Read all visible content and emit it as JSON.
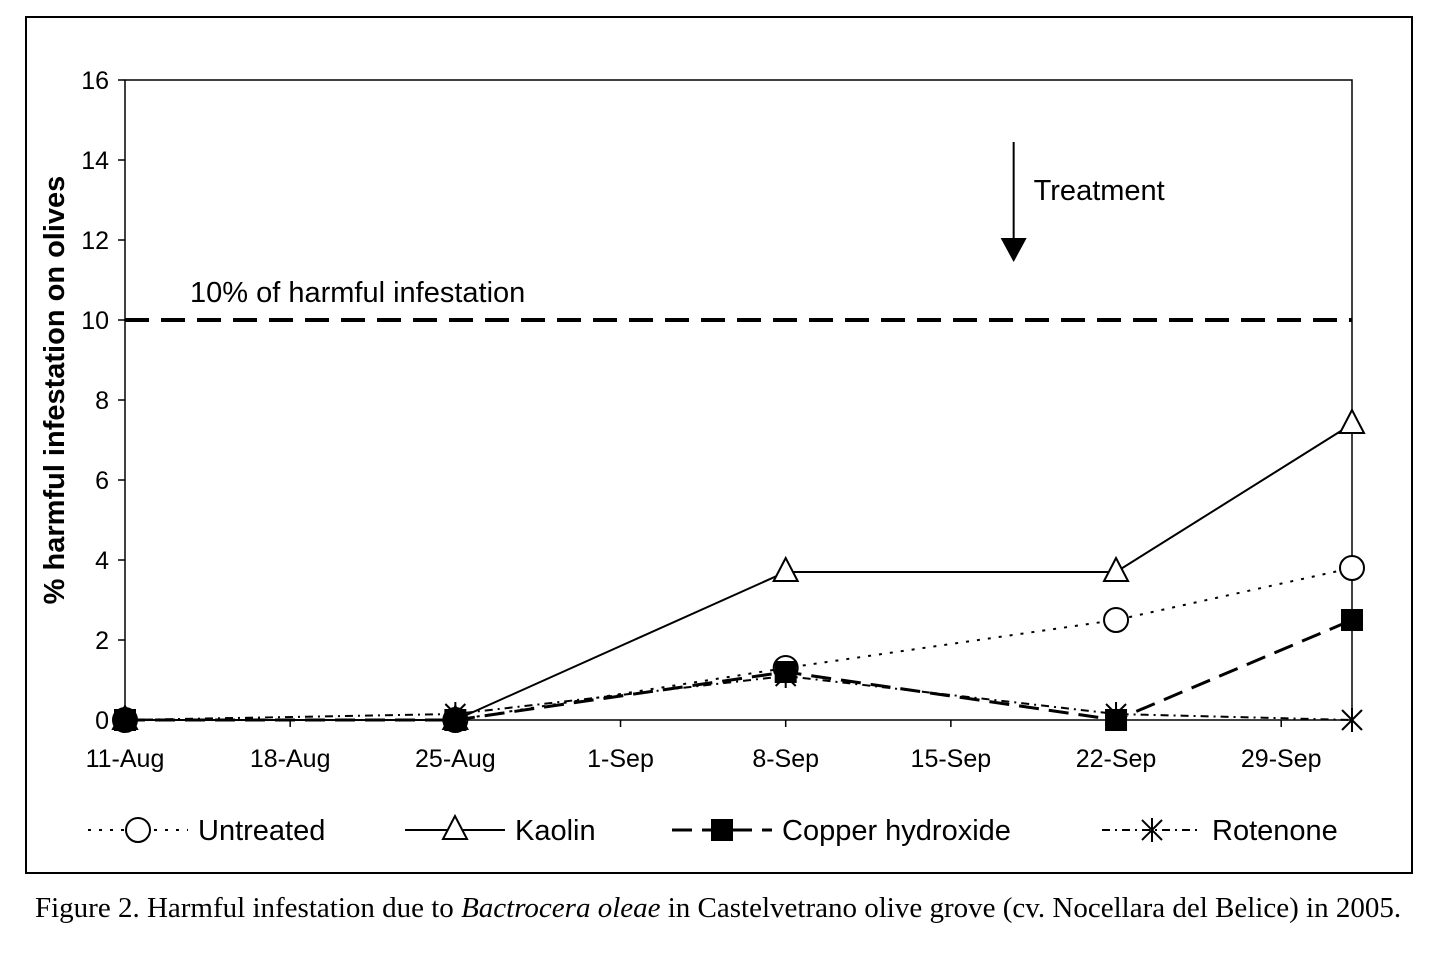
{
  "chart_data": {
    "type": "line",
    "ylabel": "% harmful infestation on olives",
    "xlabel": "",
    "ylim": [
      0,
      16
    ],
    "yticks": [
      0,
      2,
      4,
      6,
      8,
      10,
      12,
      14,
      16
    ],
    "x_tick_labels": [
      "11-Aug",
      "18-Aug",
      "25-Aug",
      "1-Sep",
      "8-Sep",
      "15-Sep",
      "22-Sep",
      "29-Sep"
    ],
    "x_tick_days": [
      0,
      7,
      14,
      21,
      28,
      35,
      42,
      49
    ],
    "x_range_days": [
      0,
      52
    ],
    "grid": false,
    "legend_position": "bottom",
    "series": [
      {
        "name": "Untreated",
        "marker": "circle-open",
        "line": "dotted",
        "x_days": [
          0,
          14,
          28,
          42,
          52
        ],
        "values": [
          0.0,
          0.0,
          1.3,
          2.5,
          3.8
        ]
      },
      {
        "name": "Kaolin",
        "marker": "triangle-open",
        "line": "solid",
        "x_days": [
          0,
          14,
          28,
          42,
          52
        ],
        "values": [
          0.0,
          0.0,
          3.7,
          3.7,
          7.4
        ]
      },
      {
        "name": "Copper hydroxide",
        "marker": "square-filled",
        "line": "dashed",
        "x_days": [
          0,
          14,
          28,
          42,
          52
        ],
        "values": [
          0.0,
          0.0,
          1.2,
          0.0,
          2.5
        ]
      },
      {
        "name": "Rotenone",
        "marker": "asterisk",
        "line": "dash-dot",
        "x_days": [
          0,
          14,
          28,
          42,
          52
        ],
        "values": [
          0.0,
          0.15,
          1.1,
          0.15,
          0.0
        ]
      }
    ],
    "threshold": {
      "value": 10,
      "label": "10% of harmful infestation"
    },
    "annotation": {
      "label": "Treatment",
      "x_days": 38
    }
  },
  "caption": {
    "prefix": "Figure 2. Harmful infestation due to ",
    "species": "Bactrocera oleae",
    "suffix": " in Castelvetrano olive grove (cv. Nocellara del Belice) in 2005."
  }
}
